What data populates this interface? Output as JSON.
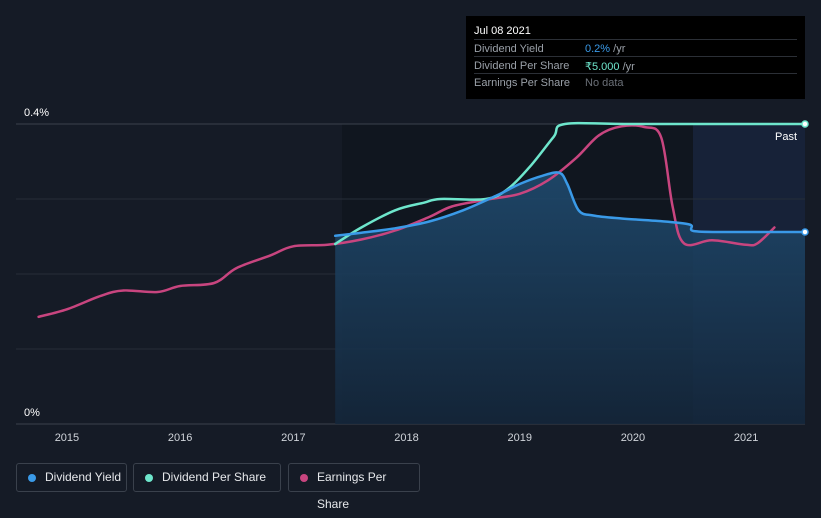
{
  "tooltip": {
    "date": "Jul 08 2021",
    "rows": [
      {
        "label": "Dividend Yield",
        "value": "0.2%",
        "unit": " /yr",
        "color": "#3a9ae8"
      },
      {
        "label": "Dividend Per Share",
        "value": "₹5.000",
        "unit": " /yr",
        "color": "#6ee6cc"
      },
      {
        "label": "Earnings Per Share",
        "value": "No data",
        "unit": "",
        "color": "#6b7078"
      }
    ]
  },
  "legend": [
    {
      "label": "Dividend Yield",
      "color": "#3a9ae8"
    },
    {
      "label": "Dividend Per Share",
      "color": "#6ee6cc"
    },
    {
      "label": "Earnings Per Share",
      "color": "#c8457f"
    }
  ],
  "chart_data": {
    "type": "line",
    "x_ticks": [
      "2015",
      "2016",
      "2017",
      "2018",
      "2019",
      "2020",
      "2021"
    ],
    "y_ticks": [
      "0%",
      "0.4%"
    ],
    "ylim": [
      0,
      0.4
    ],
    "xlim": [
      2014.55,
      2021.52
    ],
    "past_label": "Past",
    "grid": true,
    "series": [
      {
        "name": "Dividend Yield",
        "color": "#3a9ae8",
        "points": [
          [
            2017.37,
            0.251
          ],
          [
            2017.6,
            0.255
          ],
          [
            2017.9,
            0.261
          ],
          [
            2018.2,
            0.27
          ],
          [
            2018.5,
            0.285
          ],
          [
            2018.8,
            0.305
          ],
          [
            2019.0,
            0.32
          ],
          [
            2019.2,
            0.331
          ],
          [
            2019.35,
            0.335
          ],
          [
            2019.42,
            0.32
          ],
          [
            2019.52,
            0.285
          ],
          [
            2019.65,
            0.278
          ],
          [
            2019.9,
            0.274
          ],
          [
            2020.2,
            0.271
          ],
          [
            2020.5,
            0.266
          ],
          [
            2020.55,
            0.257
          ],
          [
            2021.0,
            0.256
          ],
          [
            2021.52,
            0.256
          ]
        ]
      },
      {
        "name": "Dividend Per Share",
        "color": "#6ee6cc",
        "points": [
          [
            2017.37,
            0.24
          ],
          [
            2017.6,
            0.262
          ],
          [
            2017.9,
            0.285
          ],
          [
            2018.15,
            0.295
          ],
          [
            2018.3,
            0.3
          ],
          [
            2018.7,
            0.3
          ],
          [
            2018.9,
            0.314
          ],
          [
            2019.1,
            0.345
          ],
          [
            2019.3,
            0.383
          ],
          [
            2019.4,
            0.4
          ],
          [
            2020.0,
            0.4
          ],
          [
            2021.52,
            0.4
          ]
        ]
      },
      {
        "name": "Earnings Per Share",
        "color": "#c8457f",
        "points": [
          [
            2014.75,
            0.143
          ],
          [
            2015.0,
            0.153
          ],
          [
            2015.3,
            0.171
          ],
          [
            2015.5,
            0.178
          ],
          [
            2015.8,
            0.176
          ],
          [
            2016.0,
            0.184
          ],
          [
            2016.3,
            0.188
          ],
          [
            2016.5,
            0.208
          ],
          [
            2016.8,
            0.225
          ],
          [
            2017.0,
            0.237
          ],
          [
            2017.3,
            0.239
          ],
          [
            2017.6,
            0.246
          ],
          [
            2017.9,
            0.258
          ],
          [
            2018.2,
            0.276
          ],
          [
            2018.4,
            0.29
          ],
          [
            2018.7,
            0.299
          ],
          [
            2019.0,
            0.307
          ],
          [
            2019.25,
            0.325
          ],
          [
            2019.5,
            0.355
          ],
          [
            2019.7,
            0.385
          ],
          [
            2019.9,
            0.397
          ],
          [
            2020.1,
            0.396
          ],
          [
            2020.25,
            0.382
          ],
          [
            2020.35,
            0.29
          ],
          [
            2020.45,
            0.241
          ],
          [
            2020.7,
            0.245
          ],
          [
            2021.0,
            0.239
          ],
          [
            2021.1,
            0.241
          ],
          [
            2021.25,
            0.262
          ]
        ]
      }
    ]
  }
}
